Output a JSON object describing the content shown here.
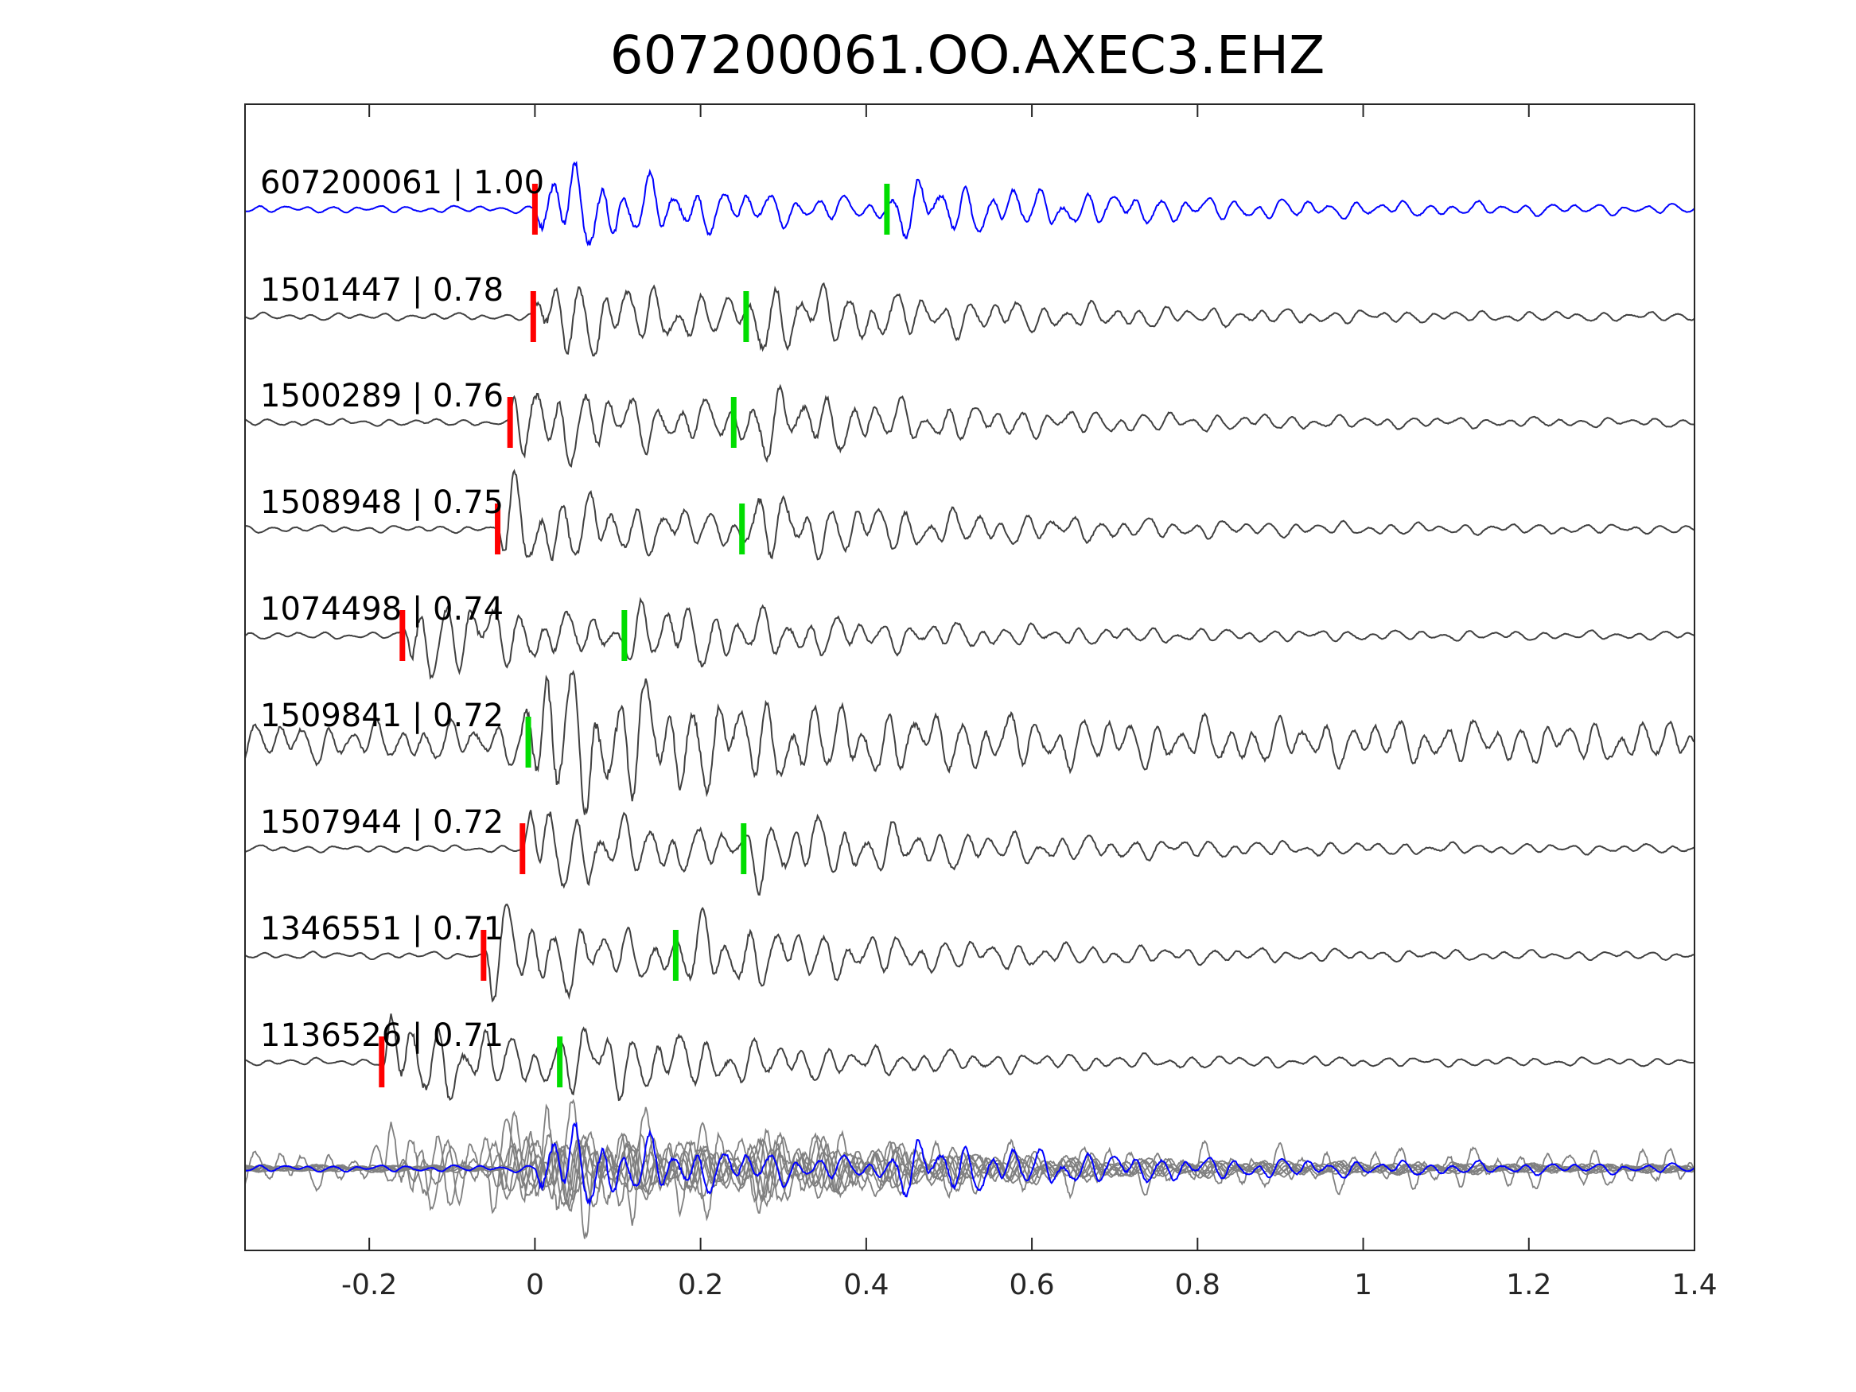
{
  "chart_data": {
    "type": "line",
    "title": "607200061.OO.AXEC3.EHZ",
    "xlabel": "",
    "ylabel": "",
    "xlim": [
      -0.35,
      1.4
    ],
    "x_ticks": [
      -0.2,
      0,
      0.2,
      0.4,
      0.6,
      0.8,
      1,
      1.2,
      1.4
    ],
    "x_tick_labels": [
      "-0.2",
      "0",
      "0.2",
      "0.4",
      "0.6",
      "0.8",
      "1",
      "1.2",
      "1.4"
    ],
    "y_ticks": "none",
    "grid": false,
    "colors": {
      "template": "#0000ff",
      "trace": "#404040",
      "stack": "#808080",
      "p_pick": "#ff0000",
      "s_pick": "#00dd00"
    },
    "traces": [
      {
        "id": "607200061",
        "cc": "1.00",
        "label": "607200061 | 1.00",
        "p_pick": 0.0,
        "s_pick": 0.425,
        "seed": 1,
        "template": true
      },
      {
        "id": "1501447",
        "cc": "0.78",
        "label": "1501447 | 0.78",
        "p_pick": -0.002,
        "s_pick": 0.255,
        "seed": 2
      },
      {
        "id": "1500289",
        "cc": "0.76",
        "label": "1500289 | 0.76",
        "p_pick": -0.03,
        "s_pick": 0.24,
        "seed": 3
      },
      {
        "id": "1508948",
        "cc": "0.75",
        "label": "1508948 | 0.75",
        "p_pick": -0.045,
        "s_pick": 0.25,
        "seed": 4
      },
      {
        "id": "1074498",
        "cc": "0.74",
        "label": "1074498 | 0.74",
        "p_pick": -0.16,
        "s_pick": 0.108,
        "seed": 5
      },
      {
        "id": "1509841",
        "cc": "0.72",
        "label": "1509841 | 0.72",
        "p_pick": null,
        "s_pick": -0.008,
        "seed": 6
      },
      {
        "id": "1507944",
        "cc": "0.72",
        "label": "1507944 | 0.72",
        "p_pick": -0.015,
        "s_pick": 0.252,
        "seed": 7
      },
      {
        "id": "1346551",
        "cc": "0.71",
        "label": "1346551 | 0.71",
        "p_pick": -0.062,
        "s_pick": 0.17,
        "seed": 8
      },
      {
        "id": "1136526",
        "cc": "0.71",
        "label": "1136526 | 0.71",
        "p_pick": -0.185,
        "s_pick": 0.03,
        "seed": 9
      }
    ],
    "stack": {
      "description_visible": false
    }
  }
}
